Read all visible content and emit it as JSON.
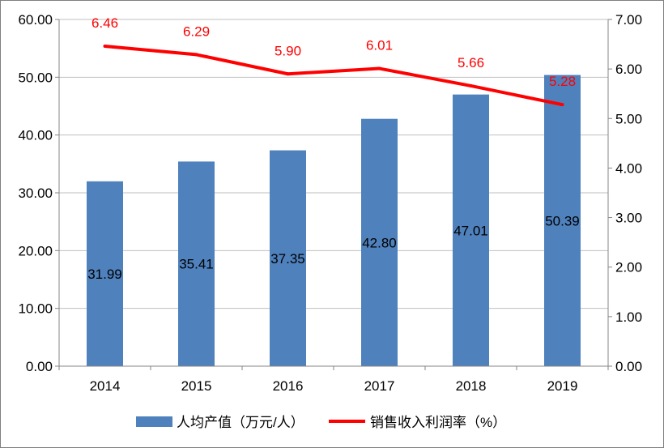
{
  "chart_data": {
    "type": "bar",
    "categories": [
      "2014",
      "2015",
      "2016",
      "2017",
      "2018",
      "2019"
    ],
    "series": [
      {
        "name": "人均产值（万元/人）",
        "type": "bar",
        "axis": "left",
        "color": "#4f81bd",
        "values": [
          31.99,
          35.41,
          37.35,
          42.8,
          47.01,
          50.39
        ],
        "labels": [
          "31.99",
          "35.41",
          "37.35",
          "42.80",
          "47.01",
          "50.39"
        ]
      },
      {
        "name": "销售收入利润率（%）",
        "type": "line",
        "axis": "right",
        "color": "#ff0000",
        "values": [
          6.46,
          6.29,
          5.9,
          6.01,
          5.66,
          5.28
        ],
        "labels": [
          "6.46",
          "6.29",
          "5.90",
          "6.01",
          "5.66",
          "5.28"
        ]
      }
    ],
    "y_left": {
      "range": [
        0,
        60
      ],
      "ticks": [
        "0.00",
        "10.00",
        "20.00",
        "30.00",
        "40.00",
        "50.00",
        "60.00"
      ]
    },
    "y_right": {
      "range": [
        0,
        7
      ],
      "ticks": [
        "0.00",
        "1.00",
        "2.00",
        "3.00",
        "4.00",
        "5.00",
        "6.00",
        "7.00"
      ]
    },
    "grid": true,
    "grid_color": "#bfbfbf",
    "legend_position": "bottom"
  }
}
